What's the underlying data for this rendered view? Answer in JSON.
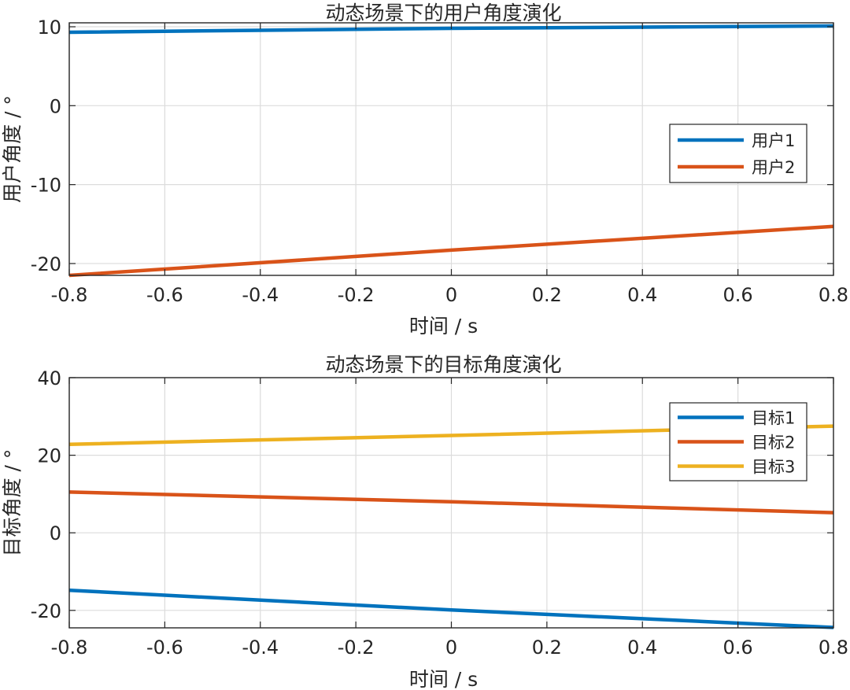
{
  "chart_data": [
    {
      "type": "line",
      "title": "动态场景下的用户角度演化",
      "xlabel": "时间 / s",
      "ylabel": "用户角度 / °",
      "xlim": [
        -0.8,
        0.8
      ],
      "ylim": [
        -21.5,
        10.5
      ],
      "xticks": [
        -0.8,
        -0.6,
        -0.4,
        -0.2,
        0,
        0.2,
        0.4,
        0.6,
        0.8
      ],
      "xtick_labels": [
        "-0.8",
        "-0.6",
        "-0.4",
        "-0.2",
        "0",
        "0.2",
        "0.4",
        "0.6",
        "0.8"
      ],
      "yticks": [
        10,
        0,
        -10,
        -20
      ],
      "ytick_labels": [
        "10",
        "0",
        "-10",
        "-20"
      ],
      "grid": true,
      "legend_position": "center-right",
      "series": [
        {
          "name": "用户1",
          "color": "#0072BD",
          "x": [
            -0.8,
            0,
            0.8
          ],
          "y": [
            9.3,
            9.8,
            10.1
          ]
        },
        {
          "name": "用户2",
          "color": "#D95319",
          "x": [
            -0.8,
            0,
            0.8
          ],
          "y": [
            -21.5,
            -18.3,
            -15.3
          ]
        }
      ]
    },
    {
      "type": "line",
      "title": "动态场景下的目标角度演化",
      "xlabel": "时间 / s",
      "ylabel": "目标角度 / °",
      "xlim": [
        -0.8,
        0.8
      ],
      "ylim": [
        -24.5,
        40
      ],
      "xticks": [
        -0.8,
        -0.6,
        -0.4,
        -0.2,
        0,
        0.2,
        0.4,
        0.6,
        0.8
      ],
      "xtick_labels": [
        "-0.8",
        "-0.6",
        "-0.4",
        "-0.2",
        "0",
        "0.2",
        "0.4",
        "0.6",
        "0.8"
      ],
      "yticks": [
        40,
        20,
        0,
        -20
      ],
      "ytick_labels": [
        "40",
        "20",
        "0",
        "-20"
      ],
      "grid": true,
      "legend_position": "top-right",
      "series": [
        {
          "name": "目标1",
          "color": "#0072BD",
          "x": [
            -0.8,
            0,
            0.8
          ],
          "y": [
            -14.8,
            -19.9,
            -24.4
          ]
        },
        {
          "name": "目标2",
          "color": "#D95319",
          "x": [
            -0.8,
            0,
            0.8
          ],
          "y": [
            10.5,
            8.0,
            5.2
          ]
        },
        {
          "name": "目标3",
          "color": "#EDB120",
          "x": [
            -0.8,
            0,
            0.8
          ],
          "y": [
            22.8,
            25.1,
            27.5
          ]
        }
      ]
    }
  ]
}
